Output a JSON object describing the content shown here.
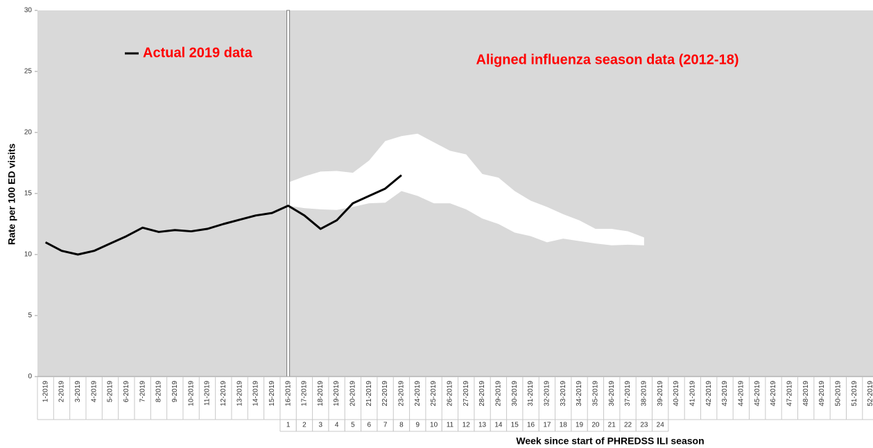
{
  "chart_data": {
    "type": "line",
    "y_label": "Rate per 100 ED visits",
    "x_label": "Week since start of PHREDSS ILI season",
    "categories": [
      "1-2019",
      "2-2019",
      "3-2019",
      "4-2019",
      "5-2019",
      "6-2019",
      "7-2019",
      "8-2019",
      "9-2019",
      "10-2019",
      "11-2019",
      "12-2019",
      "13-2019",
      "14-2019",
      "15-2019",
      "16-2019",
      "17-2019",
      "18-2019",
      "19-2019",
      "20-2019",
      "21-2019",
      "22-2019",
      "23-2019",
      "24-2019",
      "25-2019",
      "26-2019",
      "27-2019",
      "28-2019",
      "29-2019",
      "30-2019",
      "31-2019",
      "32-2019",
      "33-2019",
      "34-2019",
      "35-2019",
      "36-2019",
      "37-2019",
      "38-2019",
      "39-2019",
      "40-2019",
      "41-2019",
      "42-2019",
      "43-2019",
      "44-2019",
      "45-2019",
      "46-2019",
      "47-2019",
      "48-2019",
      "49-2019",
      "50-2019",
      "51-2019",
      "52-2019"
    ],
    "season_weeks": [
      null,
      null,
      null,
      null,
      null,
      null,
      null,
      null,
      null,
      null,
      null,
      null,
      null,
      null,
      null,
      1,
      2,
      3,
      4,
      5,
      6,
      7,
      8,
      9,
      10,
      11,
      12,
      13,
      14,
      15,
      16,
      17,
      18,
      19,
      20,
      21,
      22,
      23,
      24,
      null,
      null,
      null,
      null,
      null,
      null,
      null,
      null,
      null,
      null,
      null,
      null,
      null
    ],
    "series": [
      {
        "name": "Actual 2019 data",
        "color": "#000000",
        "label_color": "#ff0000",
        "values": [
          11.0,
          10.3,
          10.0,
          10.3,
          10.9,
          11.5,
          12.2,
          11.85,
          12.0,
          11.9,
          12.1,
          12.5,
          12.85,
          13.2,
          13.4,
          14.0,
          13.2,
          12.1,
          12.8,
          14.2,
          14.8,
          15.4,
          16.5,
          null,
          null,
          null,
          null,
          null,
          null,
          null,
          null,
          null,
          null,
          null,
          null,
          null,
          null,
          null,
          null,
          null,
          null,
          null,
          null,
          null,
          null,
          null,
          null,
          null,
          null,
          null,
          null,
          null
        ]
      },
      {
        "name": "Aligned influenza season data (2012-18)",
        "color": "#ffffff",
        "label_color": "#ff0000",
        "values": [
          null,
          null,
          null,
          null,
          null,
          null,
          null,
          null,
          null,
          null,
          null,
          null,
          null,
          null,
          null,
          15.9,
          16.4,
          16.8,
          16.85,
          16.7,
          17.7,
          19.3,
          19.7,
          19.9,
          19.2,
          18.5,
          18.2,
          16.6,
          16.3,
          15.2,
          14.4,
          13.9,
          13.3,
          12.8,
          12.1,
          12.1,
          11.9,
          11.4,
          null,
          null,
          null,
          null,
          null,
          null,
          null,
          null,
          null,
          null,
          null,
          null,
          null,
          null
        ],
        "lower": [
          null,
          null,
          null,
          null,
          null,
          null,
          null,
          null,
          null,
          null,
          null,
          null,
          null,
          null,
          null,
          14.0,
          13.8,
          13.7,
          13.65,
          13.9,
          14.2,
          14.25,
          15.2,
          14.8,
          14.2,
          14.2,
          13.7,
          12.95,
          12.5,
          11.8,
          11.5,
          11.0,
          11.3,
          11.1,
          10.9,
          10.75,
          10.8,
          10.75,
          null,
          null,
          null,
          null,
          null,
          null,
          null,
          null,
          null,
          null,
          null,
          null,
          null,
          null
        ]
      }
    ],
    "ylim": [
      0,
      30
    ],
    "yticks": [
      0,
      5,
      10,
      15,
      20,
      25,
      30
    ],
    "background": "#d9d9d9"
  }
}
